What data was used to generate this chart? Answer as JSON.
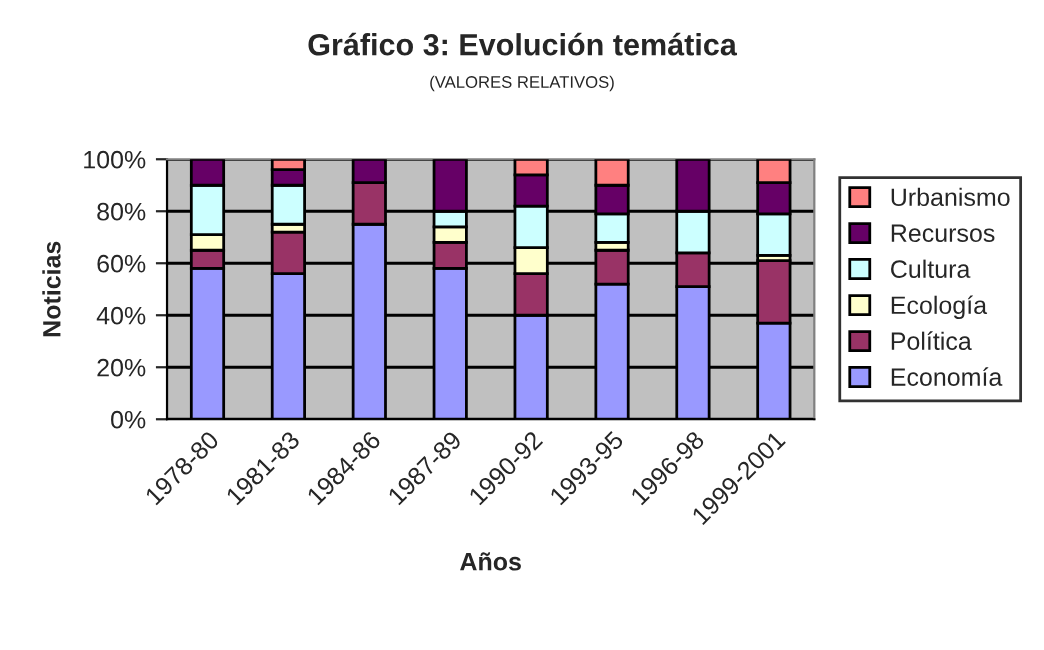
{
  "chart_data": {
    "type": "bar",
    "title": "Gráfico 3: Evolución temática",
    "subtitle": "(VALORES RELATIVOS)",
    "xlabel": "Años",
    "ylabel": "Noticias",
    "categories": [
      "1978-80",
      "1981-83",
      "1984-86",
      "1987-89",
      "1990-92",
      "1993-95",
      "1996-98",
      "1999-2001"
    ],
    "stacked": true,
    "ylim": [
      0,
      100
    ],
    "yticks": [
      {
        "value": 0,
        "label": "0%"
      },
      {
        "value": 20,
        "label": "20%"
      },
      {
        "value": 40,
        "label": "40%"
      },
      {
        "value": 60,
        "label": "60%"
      },
      {
        "value": 80,
        "label": "80%"
      },
      {
        "value": 100,
        "label": "100%"
      }
    ],
    "grid": "y",
    "legend": "right",
    "series": [
      {
        "name": "Economía",
        "color": "#9999ff",
        "values": [
          58,
          56,
          75,
          58,
          40,
          52,
          51,
          37
        ]
      },
      {
        "name": "Política",
        "color": "#993366",
        "values": [
          7,
          16,
          16,
          10,
          16,
          13,
          13,
          24
        ]
      },
      {
        "name": "Ecología",
        "color": "#ffffcc",
        "values": [
          6,
          3,
          null,
          6,
          10,
          3,
          null,
          2
        ]
      },
      {
        "name": "Cultura",
        "color": "#ccffff",
        "values": [
          19,
          15,
          null,
          6,
          16,
          11,
          16,
          16
        ]
      },
      {
        "name": "Recursos",
        "color": "#660066",
        "values": [
          10,
          6,
          9,
          20,
          12,
          11,
          20,
          12
        ]
      },
      {
        "name": "Urbanismo",
        "color": "#ff8080",
        "values": [
          null,
          4,
          null,
          null,
          6,
          10,
          null,
          9
        ]
      }
    ]
  }
}
